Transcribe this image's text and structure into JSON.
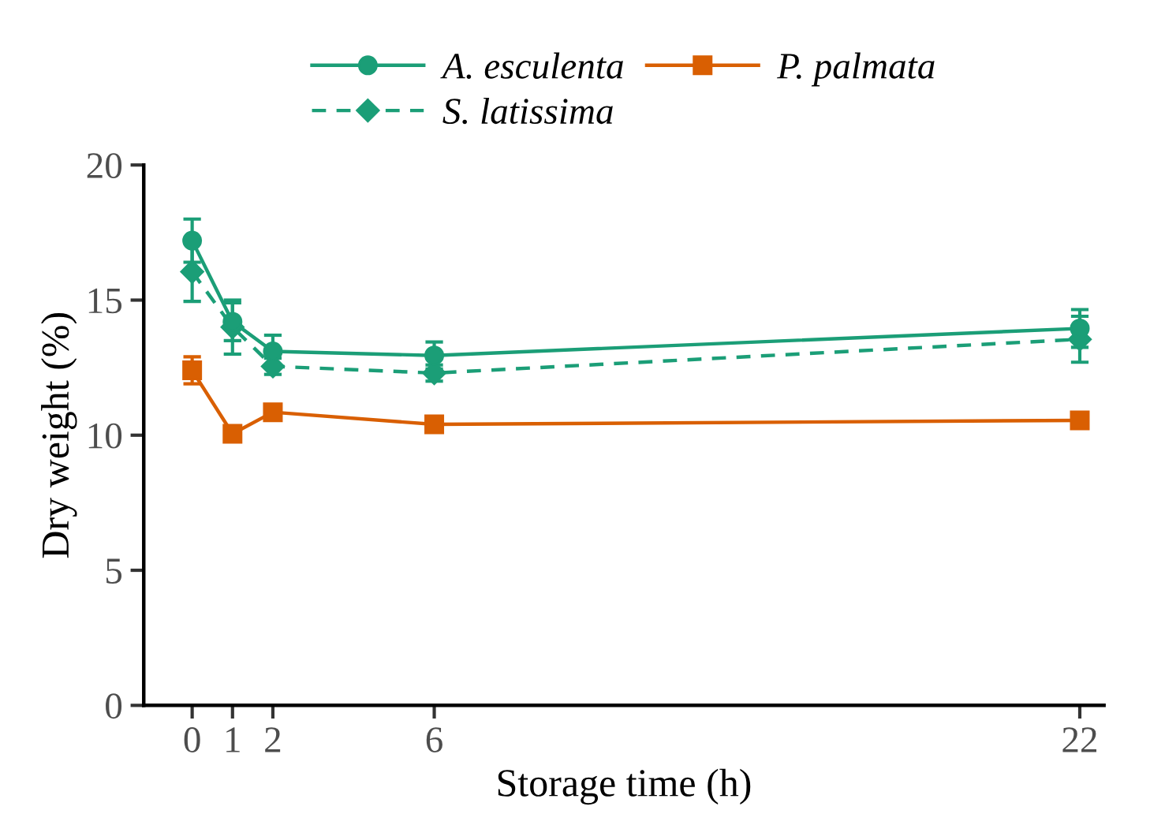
{
  "chart_data": {
    "type": "line",
    "xlabel": "Storage time (h)",
    "ylabel": "Dry weight (%)",
    "xlim": [
      -1.2,
      22.6
    ],
    "xticks": [
      0,
      1,
      2,
      6,
      22
    ],
    "ylim": [
      0,
      20
    ],
    "yticks": [
      0,
      5,
      10,
      15,
      20
    ],
    "grid": false,
    "legend": "top",
    "series": [
      {
        "name": "A. esculenta",
        "color": "#1b9e77",
        "x": [
          0,
          1,
          2,
          6,
          22
        ],
        "values": [
          17.2,
          14.2,
          13.1,
          12.95,
          13.95
        ],
        "errors": [
          0.8,
          0.7,
          0.6,
          0.5,
          0.7
        ],
        "marker": "circle",
        "line_style": "solid"
      },
      {
        "name": "P. palmata",
        "color": "#d95f02",
        "x": [
          0,
          1,
          2,
          6,
          22
        ],
        "values": [
          12.4,
          10.05,
          10.85,
          10.4,
          10.55
        ],
        "errors": [
          0.5,
          null,
          null,
          null,
          null
        ],
        "marker": "square",
        "line_style": "solid"
      },
      {
        "name": "S. latissima",
        "color": "#1b9e77",
        "x": [
          0,
          1,
          2,
          6,
          22
        ],
        "values": [
          16.05,
          14.0,
          12.55,
          12.3,
          13.55
        ],
        "errors": [
          1.1,
          1.0,
          0.3,
          0.3,
          0.85
        ],
        "marker": "diamond",
        "line_style": "dashed"
      }
    ]
  }
}
